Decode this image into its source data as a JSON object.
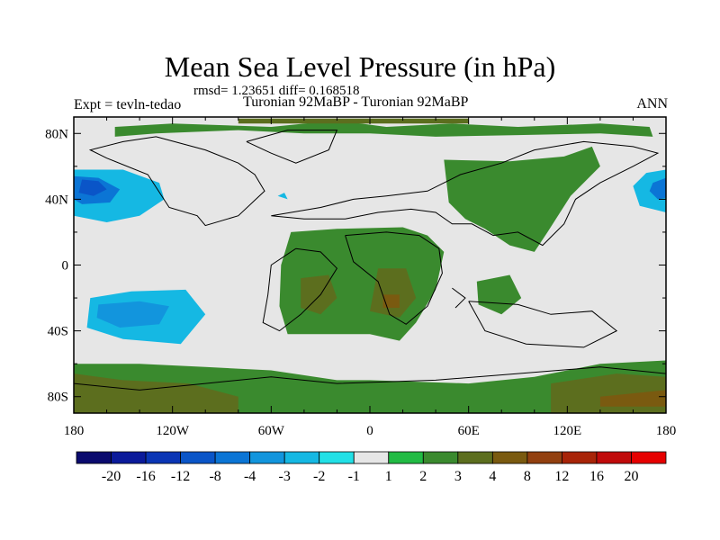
{
  "chart_data": {
    "type": "heatmap",
    "title": "Mean Sea Level Pressure (in hPa)",
    "stats": "rmsd= 1.23651 diff= 0.168518",
    "left_label": "Expt = tevln-tedao",
    "subtitle": "Turonian  92MaBP - Turonian  92MaBP",
    "season": "ANN",
    "x_ticks": [
      "180",
      "120W",
      "60W",
      "0",
      "60E",
      "120E",
      "180"
    ],
    "y_ticks": [
      "80N",
      "40N",
      "0",
      "40S",
      "80S"
    ],
    "xlim": [
      -180,
      180
    ],
    "ylim": [
      -90,
      90
    ],
    "levels": [
      "-20",
      "-16",
      "-12",
      "-8",
      "-4",
      "-3",
      "-2",
      "-1",
      "1",
      "2",
      "3",
      "4",
      "8",
      "12",
      "16",
      "20"
    ],
    "palette": [
      "#0a0a6e",
      "#0b1a9a",
      "#0a35b5",
      "#0a55c8",
      "#0b75d5",
      "#1295dd",
      "#15b8e3",
      "#22e0e6",
      "#e6e6e6",
      "#22bb44",
      "#3a8a2e",
      "#5c6e1e",
      "#7a5a10",
      "#924010",
      "#a82408",
      "#c00a0a",
      "#e60000"
    ],
    "features": [
      {
        "name": "north-pacific-low-west",
        "level": "-3",
        "points": [
          [
            -180,
            58
          ],
          [
            -150,
            58
          ],
          [
            -128,
            50
          ],
          [
            -125,
            40
          ],
          [
            -140,
            30
          ],
          [
            -160,
            26
          ],
          [
            -180,
            30
          ]
        ]
      },
      {
        "name": "north-pacific-low-west-core",
        "level": "-8",
        "points": [
          [
            -180,
            54
          ],
          [
            -165,
            53
          ],
          [
            -152,
            46
          ],
          [
            -158,
            38
          ],
          [
            -175,
            37
          ],
          [
            -180,
            40
          ]
        ]
      },
      {
        "name": "north-pacific-low-west-inner",
        "level": "-12",
        "points": [
          [
            -175,
            52
          ],
          [
            -165,
            51
          ],
          [
            -160,
            46
          ],
          [
            -168,
            42
          ],
          [
            -177,
            44
          ]
        ]
      },
      {
        "name": "north-pacific-low-east",
        "level": "-3",
        "points": [
          [
            180,
            58
          ],
          [
            168,
            56
          ],
          [
            160,
            48
          ],
          [
            164,
            36
          ],
          [
            180,
            32
          ]
        ]
      },
      {
        "name": "north-pacific-low-east-core",
        "level": "-8",
        "points": [
          [
            180,
            53
          ],
          [
            172,
            50
          ],
          [
            170,
            45
          ],
          [
            175,
            40
          ],
          [
            180,
            41
          ]
        ]
      },
      {
        "name": "south-pacific-low",
        "level": "-3",
        "points": [
          [
            -170,
            -20
          ],
          [
            -145,
            -16
          ],
          [
            -112,
            -15
          ],
          [
            -100,
            -30
          ],
          [
            -115,
            -48
          ],
          [
            -150,
            -45
          ],
          [
            -172,
            -38
          ]
        ]
      },
      {
        "name": "south-pacific-low-core",
        "level": "-4",
        "points": [
          [
            -165,
            -24
          ],
          [
            -140,
            -22
          ],
          [
            -122,
            -25
          ],
          [
            -128,
            -36
          ],
          [
            -152,
            -38
          ],
          [
            -166,
            -32
          ]
        ]
      },
      {
        "name": "cyan-patch-ne-atlantic",
        "level": "-3",
        "points": [
          [
            -56,
            42
          ],
          [
            -52,
            44
          ],
          [
            -50,
            40
          ]
        ]
      },
      {
        "name": "arctic-green",
        "level": "2",
        "points": [
          [
            -155,
            84
          ],
          [
            -120,
            86
          ],
          [
            -60,
            84
          ],
          [
            -20,
            88
          ],
          [
            10,
            84
          ],
          [
            50,
            86
          ],
          [
            90,
            84
          ],
          [
            140,
            86
          ],
          [
            170,
            84
          ],
          [
            172,
            78
          ],
          [
            140,
            80
          ],
          [
            90,
            79
          ],
          [
            40,
            78
          ],
          [
            0,
            80
          ],
          [
            -40,
            80
          ],
          [
            -80,
            82
          ],
          [
            -130,
            80
          ],
          [
            -155,
            78
          ]
        ]
      },
      {
        "name": "arctic-dark-strip",
        "level": "3",
        "points": [
          [
            -80,
            89
          ],
          [
            60,
            89
          ],
          [
            60,
            86
          ],
          [
            -80,
            86
          ]
        ]
      },
      {
        "name": "asia-green",
        "level": "2",
        "points": [
          [
            45,
            64
          ],
          [
            85,
            63
          ],
          [
            118,
            66
          ],
          [
            135,
            72
          ],
          [
            140,
            60
          ],
          [
            122,
            42
          ],
          [
            108,
            20
          ],
          [
            100,
            8
          ],
          [
            85,
            12
          ],
          [
            70,
            22
          ],
          [
            58,
            28
          ],
          [
            48,
            38
          ]
        ]
      },
      {
        "name": "africa-samerica-green",
        "level": "2",
        "points": [
          [
            -48,
            20
          ],
          [
            -20,
            22
          ],
          [
            20,
            23
          ],
          [
            35,
            18
          ],
          [
            45,
            8
          ],
          [
            40,
            -15
          ],
          [
            28,
            -35
          ],
          [
            18,
            -46
          ],
          [
            0,
            -42
          ],
          [
            -20,
            -42
          ],
          [
            -50,
            -42
          ],
          [
            -55,
            -25
          ],
          [
            -54,
            0
          ]
        ]
      },
      {
        "name": "samerica-dark",
        "level": "3",
        "points": [
          [
            -42,
            -8
          ],
          [
            -25,
            -6
          ],
          [
            -20,
            -20
          ],
          [
            -30,
            -30
          ],
          [
            -42,
            -26
          ]
        ]
      },
      {
        "name": "africa-dark",
        "level": "3",
        "points": [
          [
            5,
            -2
          ],
          [
            22,
            -2
          ],
          [
            28,
            -20
          ],
          [
            18,
            -32
          ],
          [
            0,
            -28
          ]
        ]
      },
      {
        "name": "africa-core",
        "level": "4",
        "points": [
          [
            8,
            -18
          ],
          [
            18,
            -18
          ],
          [
            18,
            -26
          ],
          [
            8,
            -26
          ]
        ]
      },
      {
        "name": "indian-ocean-green",
        "level": "2",
        "points": [
          [
            65,
            -10
          ],
          [
            85,
            -6
          ],
          [
            92,
            -20
          ],
          [
            80,
            -30
          ],
          [
            66,
            -24
          ]
        ]
      },
      {
        "name": "antarctic-green",
        "level": "2",
        "points": [
          [
            -180,
            -60
          ],
          [
            -140,
            -60
          ],
          [
            -100,
            -62
          ],
          [
            -60,
            -64
          ],
          [
            -20,
            -70
          ],
          [
            0,
            -70
          ],
          [
            60,
            -72
          ],
          [
            100,
            -68
          ],
          [
            140,
            -60
          ],
          [
            180,
            -58
          ],
          [
            180,
            -90
          ],
          [
            -180,
            -90
          ]
        ]
      },
      {
        "name": "antarctic-dark-west",
        "level": "3",
        "points": [
          [
            -180,
            -66
          ],
          [
            -150,
            -70
          ],
          [
            -110,
            -72
          ],
          [
            -80,
            -80
          ],
          [
            -80,
            -90
          ],
          [
            -180,
            -90
          ]
        ]
      },
      {
        "name": "antarctic-dark-east",
        "level": "3",
        "points": [
          [
            110,
            -72
          ],
          [
            150,
            -66
          ],
          [
            180,
            -68
          ],
          [
            180,
            -90
          ],
          [
            110,
            -90
          ]
        ]
      },
      {
        "name": "antarctic-brown-east",
        "level": "4",
        "points": [
          [
            140,
            -80
          ],
          [
            180,
            -76
          ],
          [
            180,
            -86
          ],
          [
            140,
            -86
          ]
        ]
      }
    ],
    "coastlines": [
      [
        [
          -130,
          78
        ],
        [
          -100,
          70
        ],
        [
          -80,
          62
        ],
        [
          -70,
          55
        ],
        [
          -64,
          45
        ],
        [
          -80,
          30
        ],
        [
          -100,
          24
        ],
        [
          -105,
          30
        ],
        [
          -122,
          35
        ],
        [
          -135,
          55
        ],
        [
          -160,
          65
        ],
        [
          -170,
          70
        ],
        [
          -150,
          75
        ],
        [
          -130,
          78
        ]
      ],
      [
        [
          -75,
          75
        ],
        [
          -50,
          82
        ],
        [
          -20,
          82
        ],
        [
          -25,
          70
        ],
        [
          -45,
          62
        ],
        [
          -60,
          68
        ],
        [
          -75,
          75
        ]
      ],
      [
        [
          -60,
          30
        ],
        [
          -30,
          35
        ],
        [
          -10,
          40
        ],
        [
          10,
          42
        ],
        [
          35,
          45
        ],
        [
          55,
          55
        ],
        [
          80,
          62
        ],
        [
          100,
          70
        ],
        [
          130,
          75
        ],
        [
          160,
          72
        ],
        [
          175,
          68
        ],
        [
          160,
          60
        ],
        [
          140,
          50
        ],
        [
          125,
          40
        ],
        [
          118,
          25
        ],
        [
          105,
          12
        ],
        [
          90,
          20
        ],
        [
          75,
          18
        ],
        [
          62,
          25
        ],
        [
          50,
          25
        ],
        [
          40,
          32
        ],
        [
          25,
          34
        ],
        [
          5,
          32
        ],
        [
          -15,
          28
        ],
        [
          -40,
          28
        ],
        [
          -60,
          30
        ]
      ],
      [
        [
          -45,
          10
        ],
        [
          -30,
          8
        ],
        [
          -20,
          -2
        ],
        [
          -30,
          -18
        ],
        [
          -42,
          -30
        ],
        [
          -55,
          -40
        ],
        [
          -65,
          -35
        ],
        [
          -62,
          -18
        ],
        [
          -60,
          0
        ],
        [
          -45,
          10
        ]
      ],
      [
        [
          -15,
          18
        ],
        [
          10,
          20
        ],
        [
          30,
          18
        ],
        [
          42,
          10
        ],
        [
          44,
          -5
        ],
        [
          35,
          -25
        ],
        [
          22,
          -36
        ],
        [
          12,
          -30
        ],
        [
          5,
          -10
        ],
        [
          -10,
          2
        ],
        [
          -15,
          18
        ]
      ],
      [
        [
          50,
          -14
        ],
        [
          58,
          -20
        ],
        [
          52,
          -26
        ]
      ],
      [
        [
          60,
          -22
        ],
        [
          90,
          -24
        ],
        [
          110,
          -30
        ],
        [
          135,
          -28
        ],
        [
          150,
          -40
        ],
        [
          130,
          -50
        ],
        [
          95,
          -48
        ],
        [
          70,
          -40
        ],
        [
          60,
          -22
        ]
      ],
      [
        [
          -180,
          -72
        ],
        [
          -140,
          -76
        ],
        [
          -100,
          -72
        ],
        [
          -60,
          -68
        ],
        [
          -20,
          -72
        ],
        [
          40,
          -70
        ],
        [
          90,
          -66
        ],
        [
          140,
          -62
        ],
        [
          180,
          -66
        ]
      ]
    ]
  }
}
